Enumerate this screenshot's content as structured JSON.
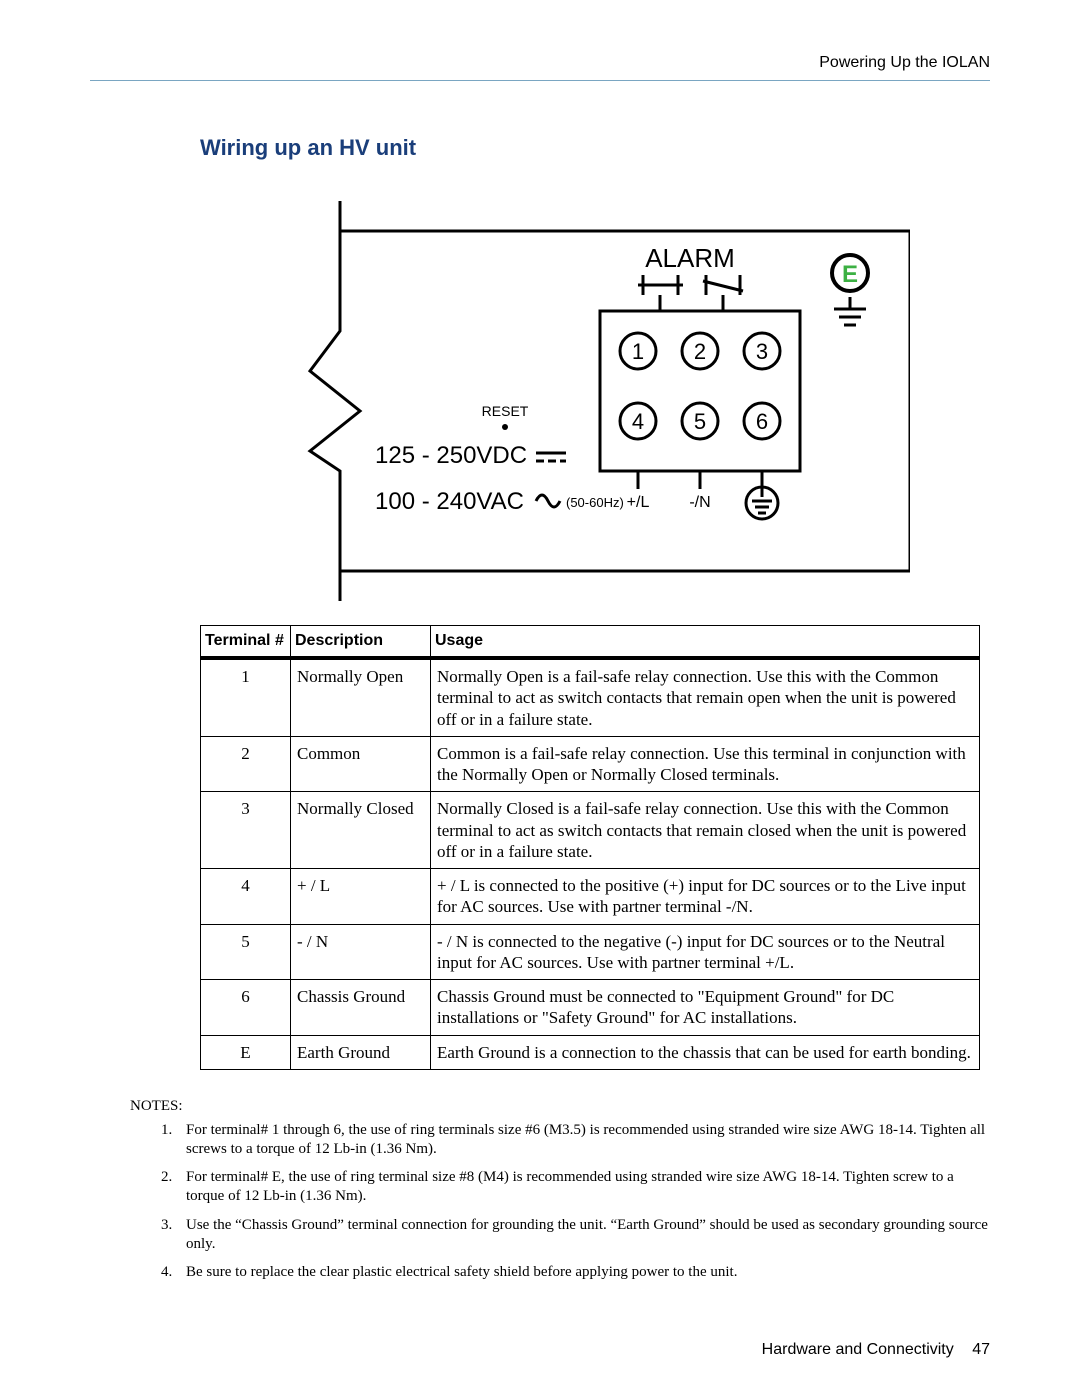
{
  "header": {
    "section": "Powering Up the IOLAN"
  },
  "title": "Wiring up an HV unit",
  "diagram": {
    "alarm_label": "ALARM",
    "reset_label": "RESET",
    "vdc_line": "125 - 250VDC",
    "vac_line": "100 - 240VAC",
    "freq": "(50-60Hz)",
    "plus_l": "+/L",
    "minus_n": "-/N",
    "earth_letter": "E",
    "earth_letter_fill": "#3cb043",
    "terminals": [
      "1",
      "2",
      "3",
      "4",
      "5",
      "6"
    ]
  },
  "table": {
    "columns": [
      "Terminal #",
      "Description",
      "Usage"
    ],
    "rows": [
      {
        "t": "1",
        "d": "Normally Open",
        "u": "Normally Open is a fail-safe relay connection. Use this with the Common terminal to act as switch contacts that remain open when the unit is powered off or in a failure state."
      },
      {
        "t": "2",
        "d": "Common",
        "u": "Common is a fail-safe relay connection. Use this terminal in conjunction with the Normally Open or Normally Closed terminals."
      },
      {
        "t": "3",
        "d": "Normally Closed",
        "u": "Normally Closed is a fail-safe relay connection. Use this with the Common terminal to act as switch contacts that remain closed when the unit is powered off or in a failure state."
      },
      {
        "t": "4",
        "d": "+ / L",
        "u": "+ / L is connected to the positive (+) input for DC sources or to the Live input for AC sources. Use with partner terminal -/N."
      },
      {
        "t": "5",
        "d": "- / N",
        "u": "- / N is connected to the negative (-) input for DC sources or to the Neutral input for AC sources. Use with partner terminal +/L."
      },
      {
        "t": "6",
        "d": "Chassis Ground",
        "u": "Chassis Ground must be connected to \"Equipment Ground\" for DC installations or \"Safety Ground\" for AC installations."
      },
      {
        "t": "E",
        "d": "Earth Ground",
        "u": "Earth Ground is a connection to the chassis that can be used for earth bonding."
      }
    ]
  },
  "notes": {
    "label": "NOTES:",
    "items": [
      "For terminal# 1 through 6, the use of ring terminals size #6 (M3.5) is recommended using stranded wire size AWG 18-14. Tighten all screws to a torque of 12 Lb-in (1.36 Nm).",
      "For terminal# E, the use of ring terminal size #8 (M4) is recommended using stranded wire size AWG 18-14. Tighten screw to a torque of 12 Lb-in (1.36 Nm).",
      "Use the “Chassis Ground” terminal connection for grounding the unit. “Earth Ground” should be used as secondary grounding source only.",
      "Be sure to replace the clear plastic electrical safety shield before applying power to the unit."
    ]
  },
  "footer": {
    "text": "Hardware and Connectivity",
    "page": "47"
  }
}
